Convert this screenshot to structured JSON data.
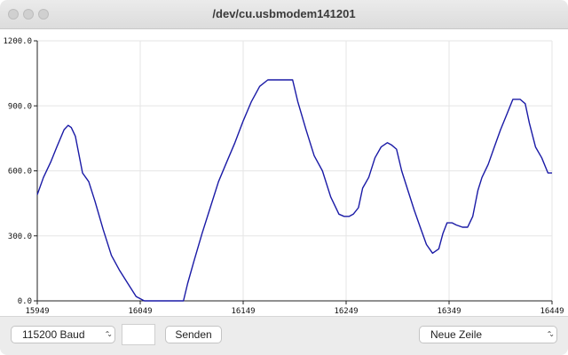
{
  "window": {
    "title": "/dev/cu.usbmodem141201"
  },
  "toolbar": {
    "baud_selected": "115200 Baud",
    "message_value": "",
    "send_label": "Senden",
    "line_ending_selected": "Neue Zeile"
  },
  "chart_data": {
    "type": "line",
    "title": "",
    "xlabel": "",
    "ylabel": "",
    "xlim": [
      15949,
      16449
    ],
    "ylim": [
      0,
      1200
    ],
    "x_ticks": [
      "15949",
      "16049",
      "16149",
      "16249",
      "16349",
      "16449"
    ],
    "y_ticks": [
      "0.0",
      "300.0",
      "600.0",
      "900.0",
      "1200.0"
    ],
    "grid": true,
    "legend": "none",
    "series": [
      {
        "color": "#1a1aa6",
        "x": [
          15949,
          15955,
          15962,
          15968,
          15975,
          15979,
          15982,
          15986,
          15993,
          15999,
          16005,
          16013,
          16021,
          16029,
          16037,
          16045,
          16053,
          16056,
          16062,
          16080,
          16091,
          16095,
          16101,
          16109,
          16117,
          16125,
          16133,
          16141,
          16149,
          16157,
          16165,
          16173,
          16180,
          16189,
          16197,
          16202,
          16210,
          16218,
          16226,
          16234,
          16242,
          16247,
          16252,
          16256,
          16261,
          16265,
          16271,
          16277,
          16283,
          16289,
          16293,
          16298,
          16303,
          16309,
          16315,
          16321,
          16327,
          16333,
          16339,
          16343,
          16347,
          16352,
          16356,
          16362,
          16367,
          16372,
          16377,
          16381,
          16387,
          16393,
          16399,
          16405,
          16411,
          16418,
          16423,
          16427,
          16433,
          16439,
          16445,
          16449
        ],
        "values": [
          490,
          570,
          640,
          710,
          790,
          810,
          800,
          760,
          590,
          550,
          460,
          330,
          210,
          140,
          80,
          20,
          0,
          0,
          0,
          0,
          0,
          80,
          180,
          310,
          430,
          550,
          640,
          730,
          830,
          920,
          990,
          1020,
          1020,
          1020,
          1020,
          920,
          790,
          670,
          600,
          480,
          400,
          390,
          390,
          400,
          430,
          520,
          570,
          660,
          710,
          730,
          720,
          700,
          600,
          510,
          420,
          340,
          260,
          220,
          240,
          310,
          360,
          360,
          350,
          340,
          340,
          390,
          510,
          570,
          630,
          710,
          790,
          860,
          930,
          930,
          910,
          820,
          710,
          660,
          590,
          590
        ]
      }
    ]
  }
}
